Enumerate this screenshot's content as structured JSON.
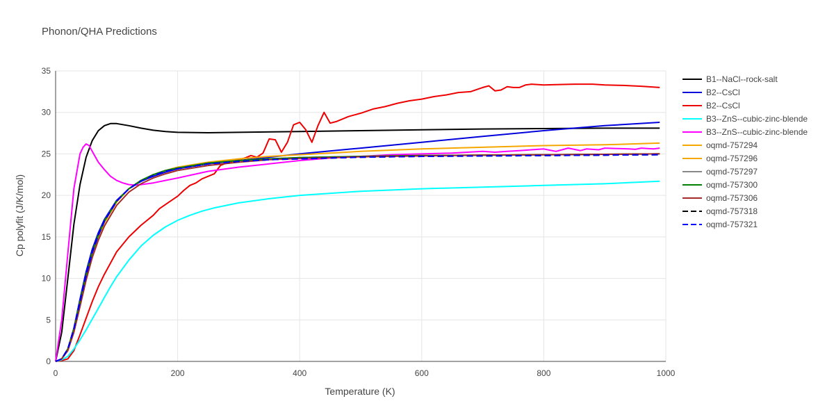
{
  "chart_data": {
    "type": "line",
    "title": "Phonon/QHA Predictions",
    "xlabel": "Temperature (K)",
    "ylabel": "Cp polyfit (J/K/mol)",
    "xlim": [
      0,
      1000
    ],
    "ylim": [
      0,
      35
    ],
    "xticks": [
      0,
      200,
      400,
      600,
      800,
      1000
    ],
    "yticks": [
      0,
      5,
      10,
      15,
      20,
      25,
      30,
      35
    ],
    "grid": true,
    "legend_position": "right",
    "series": [
      {
        "name": "B1--NaCl--rock-salt",
        "color": "#000000",
        "dash": "solid",
        "x": [
          0,
          10,
          20,
          30,
          40,
          50,
          60,
          70,
          80,
          90,
          100,
          120,
          140,
          160,
          180,
          200,
          250,
          300,
          400,
          500,
          600,
          700,
          800,
          900,
          990
        ],
        "y": [
          0,
          3.5,
          10,
          16.5,
          21.3,
          24.6,
          26.6,
          27.8,
          28.4,
          28.65,
          28.65,
          28.4,
          28.1,
          27.85,
          27.7,
          27.6,
          27.55,
          27.6,
          27.7,
          27.8,
          27.9,
          28.0,
          28.05,
          28.1,
          28.1
        ]
      },
      {
        "name": "B2--CsCl",
        "color": "#0000dd",
        "dash": "solid",
        "x": [
          0,
          10,
          20,
          30,
          40,
          50,
          60,
          70,
          80,
          100,
          120,
          140,
          160,
          180,
          200,
          250,
          300,
          350,
          400,
          500,
          600,
          700,
          800,
          900,
          990
        ],
        "y": [
          0,
          0.3,
          1.5,
          4,
          7.5,
          10.8,
          13.5,
          15.5,
          17.1,
          19.4,
          20.8,
          21.7,
          22.3,
          22.8,
          23.2,
          23.8,
          24.2,
          24.6,
          25.0,
          25.7,
          26.4,
          27.1,
          27.8,
          28.4,
          28.8
        ]
      },
      {
        "name": "B2--CsCl",
        "color": "#ee0000",
        "dash": "solid",
        "x": [
          0,
          10,
          20,
          30,
          40,
          50,
          60,
          70,
          80,
          100,
          120,
          140,
          160,
          170,
          180,
          200,
          210,
          220,
          230,
          240,
          250,
          260,
          270,
          280,
          290,
          300,
          310,
          320,
          330,
          340,
          350,
          360,
          370,
          380,
          390,
          400,
          410,
          420,
          430,
          440,
          450,
          460,
          470,
          480,
          490,
          500,
          520,
          540,
          560,
          580,
          600,
          620,
          640,
          660,
          680,
          700,
          710,
          720,
          730,
          740,
          750,
          760,
          770,
          780,
          800,
          820,
          850,
          880,
          900,
          930,
          960,
          990
        ],
        "y": [
          0,
          0.1,
          0.3,
          1.3,
          3.2,
          5.2,
          7.2,
          9.0,
          10.5,
          13.2,
          15.0,
          16.4,
          17.6,
          18.4,
          18.9,
          19.9,
          20.6,
          21.2,
          21.5,
          22.0,
          22.3,
          22.6,
          23.6,
          23.9,
          24.1,
          24.3,
          24.5,
          24.8,
          24.6,
          25.1,
          26.8,
          26.7,
          25.2,
          26.4,
          28.5,
          28.8,
          27.9,
          26.4,
          28.4,
          30.0,
          28.7,
          28.9,
          29.2,
          29.5,
          29.7,
          29.9,
          30.4,
          30.7,
          31.1,
          31.4,
          31.6,
          31.9,
          32.1,
          32.4,
          32.5,
          33.0,
          33.2,
          32.6,
          32.7,
          33.1,
          33.0,
          33.0,
          33.3,
          33.4,
          33.3,
          33.35,
          33.4,
          33.4,
          33.3,
          33.25,
          33.15,
          33.0
        ]
      },
      {
        "name": "B3--ZnS--cubic-zinc-blende",
        "color": "#00ffff",
        "dash": "solid",
        "x": [
          0,
          10,
          20,
          30,
          40,
          50,
          60,
          70,
          80,
          90,
          100,
          120,
          140,
          160,
          180,
          200,
          220,
          240,
          260,
          280,
          300,
          350,
          400,
          500,
          600,
          700,
          800,
          900,
          990
        ],
        "y": [
          0,
          0.2,
          0.6,
          1.5,
          2.6,
          3.8,
          5.1,
          6.4,
          7.7,
          9.0,
          10.2,
          12.2,
          13.9,
          15.2,
          16.2,
          17.0,
          17.6,
          18.1,
          18.5,
          18.8,
          19.1,
          19.6,
          20.0,
          20.5,
          20.8,
          21.0,
          21.2,
          21.4,
          21.7
        ]
      },
      {
        "name": "B3--ZnS--cubic-zinc-blende",
        "color": "#ff00ff",
        "dash": "solid",
        "x": [
          0,
          10,
          20,
          30,
          40,
          45,
          50,
          55,
          60,
          70,
          80,
          90,
          100,
          110,
          120,
          130,
          140,
          160,
          180,
          200,
          250,
          300,
          350,
          400,
          450,
          500,
          550,
          600,
          650,
          700,
          720,
          740,
          760,
          780,
          800,
          810,
          820,
          830,
          840,
          850,
          860,
          870,
          880,
          890,
          900,
          920,
          940,
          950,
          960,
          970,
          980,
          990
        ],
        "y": [
          0,
          5.0,
          13.0,
          20.8,
          25.0,
          25.8,
          26.2,
          26.0,
          25.3,
          24.0,
          23.1,
          22.3,
          21.8,
          21.5,
          21.3,
          21.25,
          21.3,
          21.5,
          21.8,
          22.1,
          22.9,
          23.4,
          23.8,
          24.2,
          24.5,
          24.7,
          24.9,
          25.0,
          25.1,
          25.3,
          25.2,
          25.3,
          25.4,
          25.5,
          25.6,
          25.45,
          25.3,
          25.5,
          25.7,
          25.55,
          25.4,
          25.6,
          25.55,
          25.5,
          25.7,
          25.65,
          25.6,
          25.55,
          25.7,
          25.65,
          25.6,
          25.7
        ]
      },
      {
        "name": "oqmd-757294",
        "color": "#f5a700",
        "dash": "solid",
        "x": [
          0,
          10,
          20,
          30,
          40,
          50,
          60,
          70,
          80,
          100,
          120,
          140,
          160,
          180,
          200,
          250,
          300,
          350,
          400,
          500,
          600,
          700,
          800,
          900,
          990
        ],
        "y": [
          0,
          0.3,
          1.5,
          3.8,
          7.0,
          10.2,
          12.9,
          15.0,
          16.7,
          19.2,
          20.8,
          21.8,
          22.5,
          23.0,
          23.4,
          24.0,
          24.4,
          24.7,
          24.9,
          25.3,
          25.6,
          25.8,
          26.0,
          26.1,
          26.3
        ]
      },
      {
        "name": "oqmd-757296",
        "color": "#f5a700",
        "dash": "solid",
        "x": [
          0,
          10,
          20,
          30,
          40,
          50,
          60,
          70,
          80,
          100,
          120,
          140,
          160,
          180,
          200,
          250,
          300,
          350,
          400,
          500,
          600,
          700,
          800,
          900,
          990
        ],
        "y": [
          0,
          0.3,
          1.5,
          3.9,
          7.2,
          10.4,
          13.1,
          15.2,
          16.9,
          19.3,
          20.8,
          21.8,
          22.5,
          23.0,
          23.3,
          23.9,
          24.2,
          24.4,
          24.55,
          24.7,
          24.8,
          24.85,
          24.9,
          24.95,
          25.0
        ]
      },
      {
        "name": "oqmd-757297",
        "color": "#888888",
        "dash": "solid",
        "x": [
          0,
          10,
          20,
          30,
          40,
          50,
          60,
          70,
          80,
          100,
          120,
          140,
          160,
          180,
          200,
          250,
          300,
          350,
          400,
          500,
          600,
          700,
          800,
          900,
          990
        ],
        "y": [
          0,
          0.3,
          1.5,
          3.9,
          7.2,
          10.4,
          13.1,
          15.2,
          16.9,
          19.3,
          20.8,
          21.8,
          22.5,
          23.0,
          23.3,
          23.9,
          24.2,
          24.4,
          24.55,
          24.7,
          24.8,
          24.85,
          24.9,
          24.95,
          25.0
        ]
      },
      {
        "name": "oqmd-757300",
        "color": "#008000",
        "dash": "solid",
        "x": [
          0,
          10,
          20,
          30,
          40,
          50,
          60,
          70,
          80,
          100,
          120,
          140,
          160,
          180,
          200,
          250,
          300,
          350,
          400,
          500,
          600,
          700,
          800,
          900,
          990
        ],
        "y": [
          0,
          0.3,
          1.5,
          3.9,
          7.2,
          10.4,
          13.1,
          15.2,
          16.9,
          19.3,
          20.8,
          21.8,
          22.5,
          23.0,
          23.3,
          23.9,
          24.2,
          24.4,
          24.55,
          24.7,
          24.8,
          24.85,
          24.9,
          24.95,
          25.0
        ]
      },
      {
        "name": "oqmd-757306",
        "color": "#a52a2a",
        "dash": "solid",
        "x": [
          0,
          10,
          20,
          30,
          40,
          50,
          60,
          70,
          80,
          100,
          120,
          140,
          160,
          180,
          200,
          250,
          300,
          350,
          400,
          500,
          600,
          700,
          800,
          900,
          990
        ],
        "y": [
          0,
          0.3,
          1.3,
          3.5,
          6.6,
          9.8,
          12.5,
          14.6,
          16.3,
          18.8,
          20.4,
          21.4,
          22.1,
          22.6,
          23.0,
          23.6,
          24.0,
          24.3,
          24.45,
          24.65,
          24.75,
          24.85,
          24.9,
          24.95,
          25.0
        ]
      },
      {
        "name": "oqmd-757318",
        "color": "#000000",
        "dash": "dash",
        "x": [
          0,
          10,
          20,
          30,
          40,
          50,
          60,
          70,
          80,
          100,
          120,
          140,
          160,
          180,
          200,
          250,
          300,
          350,
          400,
          500,
          600,
          700,
          800,
          900,
          990
        ],
        "y": [
          0,
          0.3,
          1.5,
          3.9,
          7.2,
          10.4,
          13.1,
          15.2,
          16.9,
          19.3,
          20.8,
          21.7,
          22.4,
          22.9,
          23.2,
          23.8,
          24.1,
          24.3,
          24.4,
          24.6,
          24.7,
          24.75,
          24.8,
          24.85,
          24.9
        ]
      },
      {
        "name": "oqmd-757321",
        "color": "#0000ff",
        "dash": "dash",
        "x": [
          0,
          10,
          20,
          30,
          40,
          50,
          60,
          70,
          80,
          100,
          120,
          140,
          160,
          180,
          200,
          250,
          300,
          350,
          400,
          500,
          600,
          700,
          800,
          900,
          990
        ],
        "y": [
          0,
          0.3,
          1.5,
          3.9,
          7.2,
          10.4,
          13.1,
          15.2,
          16.9,
          19.3,
          20.8,
          21.7,
          22.4,
          22.9,
          23.2,
          23.8,
          24.1,
          24.3,
          24.4,
          24.6,
          24.7,
          24.75,
          24.8,
          24.85,
          24.9
        ]
      }
    ]
  }
}
